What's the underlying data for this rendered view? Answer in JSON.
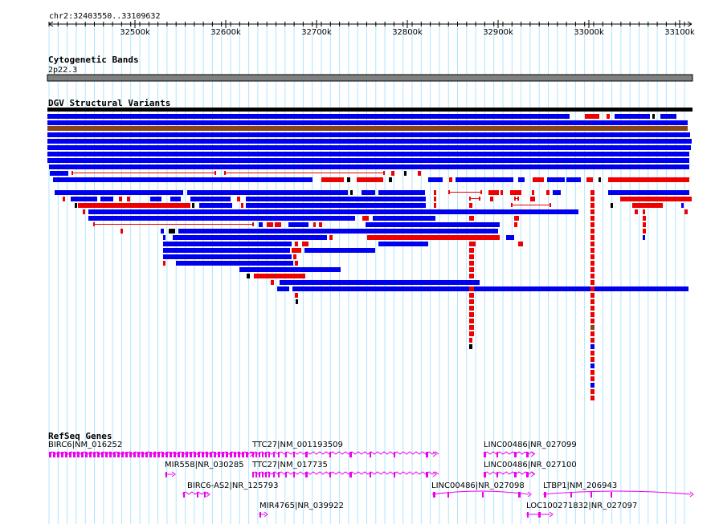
{
  "header": {
    "location": "chr2:32403550..33109632",
    "ticks": [
      "32500k",
      "32600k",
      "32700k",
      "32800k",
      "32900k",
      "33000k",
      "33100k"
    ]
  },
  "tracks": {
    "cytoband": {
      "title": "Cytogenetic Bands",
      "band": "2p22.3"
    },
    "dgv": {
      "title": "DGV Structural Variants"
    },
    "refseq": {
      "title": "RefSeq Genes",
      "genes": [
        "BIRC6|NM_016252",
        "TTC27|NM_001193509",
        "LINC00486|NR_027099",
        "MIR558|NR_030285",
        "TTC27|NM_017735",
        "LINC00486|NR_027100",
        "BIRC6-AS2|NR_125793",
        "LINC00486|NR_027098",
        "LTBP1|NM_206943",
        "MIR4765|NR_039922",
        "LOC100271832|NR_027097"
      ]
    }
  },
  "colors": {
    "gain": "#0000ee",
    "loss": "#ee0000",
    "complex": "#8b4513",
    "gene": "#ee00ee",
    "grid": "#aee6ff"
  }
}
